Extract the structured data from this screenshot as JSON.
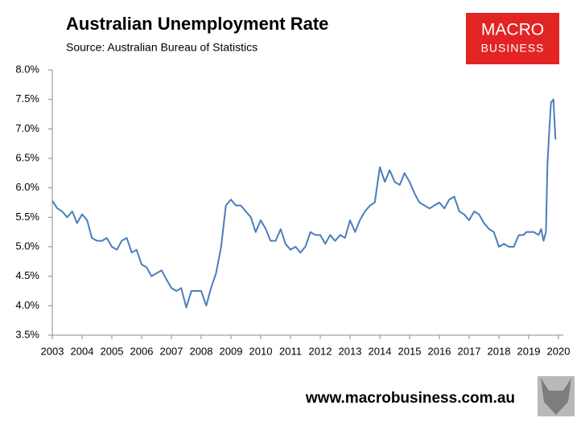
{
  "chart_data": {
    "type": "line",
    "title": "Australian Unemployment Rate",
    "subtitle": "Source: Australian Bureau of Statistics",
    "logo": {
      "line1": "MACRO",
      "line2": "BUSINESS"
    },
    "footer": "www.macrobusiness.com.au",
    "color": "#4a7ebb",
    "x": [
      2003.0,
      2003.17,
      2003.33,
      2003.5,
      2003.67,
      2003.83,
      2004.0,
      2004.17,
      2004.33,
      2004.5,
      2004.67,
      2004.83,
      2005.0,
      2005.17,
      2005.33,
      2005.5,
      2005.67,
      2005.83,
      2006.0,
      2006.17,
      2006.33,
      2006.5,
      2006.67,
      2006.83,
      2007.0,
      2007.17,
      2007.33,
      2007.5,
      2007.67,
      2007.83,
      2008.0,
      2008.17,
      2008.33,
      2008.5,
      2008.67,
      2008.83,
      2009.0,
      2009.17,
      2009.33,
      2009.5,
      2009.67,
      2009.83,
      2010.0,
      2010.17,
      2010.33,
      2010.5,
      2010.67,
      2010.83,
      2011.0,
      2011.17,
      2011.33,
      2011.5,
      2011.67,
      2011.83,
      2012.0,
      2012.17,
      2012.33,
      2012.5,
      2012.67,
      2012.83,
      2013.0,
      2013.17,
      2013.33,
      2013.5,
      2013.67,
      2013.83,
      2014.0,
      2014.17,
      2014.33,
      2014.5,
      2014.67,
      2014.83,
      2015.0,
      2015.17,
      2015.33,
      2015.5,
      2015.67,
      2015.83,
      2016.0,
      2016.17,
      2016.33,
      2016.5,
      2016.67,
      2016.83,
      2017.0,
      2017.17,
      2017.33,
      2017.5,
      2017.67,
      2017.83,
      2018.0,
      2018.17,
      2018.33,
      2018.5,
      2018.67,
      2018.83,
      2018.92,
      2019.0,
      2019.17,
      2019.33,
      2019.42,
      2019.5,
      2019.58,
      2019.63,
      2019.7,
      2019.75,
      2019.83,
      2019.9
    ],
    "values": [
      5.78,
      5.65,
      5.6,
      5.5,
      5.6,
      5.4,
      5.55,
      5.45,
      5.15,
      5.1,
      5.1,
      5.15,
      5.0,
      4.95,
      5.1,
      5.15,
      4.9,
      4.95,
      4.7,
      4.65,
      4.5,
      4.55,
      4.6,
      4.45,
      4.3,
      4.25,
      4.3,
      3.97,
      4.25,
      4.25,
      4.25,
      4.0,
      4.3,
      4.55,
      5.0,
      5.7,
      5.8,
      5.7,
      5.7,
      5.6,
      5.5,
      5.25,
      5.45,
      5.3,
      5.1,
      5.1,
      5.3,
      5.05,
      4.95,
      5.0,
      4.9,
      5.0,
      5.25,
      5.2,
      5.2,
      5.05,
      5.2,
      5.1,
      5.2,
      5.15,
      5.45,
      5.25,
      5.45,
      5.6,
      5.7,
      5.75,
      6.35,
      6.1,
      6.3,
      6.1,
      6.05,
      6.25,
      6.1,
      5.9,
      5.75,
      5.7,
      5.65,
      5.7,
      5.75,
      5.65,
      5.8,
      5.85,
      5.6,
      5.55,
      5.45,
      5.6,
      5.55,
      5.4,
      5.3,
      5.25,
      5.0,
      5.05,
      5.0,
      5.0,
      5.2,
      5.2,
      5.25,
      5.25,
      5.25,
      5.2,
      5.3,
      5.1,
      5.25,
      6.4,
      7.05,
      7.45,
      7.5,
      6.82
    ],
    "xlim": [
      2003,
      2020
    ],
    "xticks": [
      2003,
      2004,
      2005,
      2006,
      2007,
      2008,
      2009,
      2010,
      2011,
      2012,
      2013,
      2014,
      2015,
      2016,
      2017,
      2018,
      2019,
      2020
    ],
    "ylim": [
      3.5,
      8.0
    ],
    "yticks": [
      {
        "value": 3.5,
        "label": "3.5%"
      },
      {
        "value": 4.0,
        "label": "4.0%"
      },
      {
        "value": 4.5,
        "label": "4.5%"
      },
      {
        "value": 5.0,
        "label": "5.0%"
      },
      {
        "value": 5.5,
        "label": "5.5%"
      },
      {
        "value": 6.0,
        "label": "6.0%"
      },
      {
        "value": 6.5,
        "label": "6.5%"
      },
      {
        "value": 7.0,
        "label": "7.0%"
      },
      {
        "value": 7.5,
        "label": "7.5%"
      },
      {
        "value": 8.0,
        "label": "8.0%"
      }
    ],
    "grid": false
  }
}
